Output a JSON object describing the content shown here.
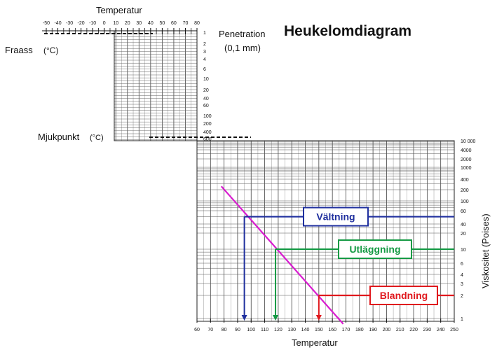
{
  "chart_data": {
    "type": "line",
    "title": "Heukelomdiagram",
    "top_panel": {
      "temperature_label": "Temperatur",
      "temperature_ticks": [
        "-50",
        "-40",
        "-30",
        "-20",
        "-10",
        "0",
        "10",
        "20",
        "30",
        "40",
        "50",
        "60",
        "70",
        "80"
      ],
      "left_label_fraass": "Fraass",
      "left_label_fraass_unit": "(°C)",
      "left_label_mjukpunkt": "Mjukpunkt",
      "left_label_mjukpunkt_unit": "(°C)",
      "penetration_label": "Penetration",
      "penetration_unit": "(0,1 mm)",
      "penetration_ticks": [
        "1",
        "2",
        "3",
        "4",
        "6",
        "10",
        "20",
        "40",
        "60",
        "100",
        "200",
        "400",
        "600"
      ]
    },
    "main_panel": {
      "xlabel": "Temperatur",
      "ylabel": "Viskositet (Poises)",
      "x_ticks": [
        "60",
        "70",
        "80",
        "90",
        "100",
        "110",
        "120",
        "130",
        "140",
        "150",
        "160",
        "170",
        "180",
        "190",
        "200",
        "210",
        "220",
        "230",
        "240",
        "250"
      ],
      "xlim": [
        60,
        250
      ],
      "y_ticks": [
        "1",
        "2",
        "3",
        "4",
        "6",
        "10",
        "20",
        "40",
        "60",
        "100",
        "200",
        "400",
        "1000",
        "2000",
        "4000",
        "10 000"
      ],
      "y_scale": "log",
      "grid": true
    },
    "series": [
      {
        "color": "#d81ccf",
        "x": [
          78,
          168
        ],
        "y": [
          250,
          0.85
        ]
      }
    ],
    "annotations": [
      {
        "label": "Vältning",
        "color": "#1f2f9e",
        "temp": 95,
        "viscosity": 50
      },
      {
        "label": "Utläggning",
        "color": "#159a44",
        "temp": 118,
        "viscosity": 10
      },
      {
        "label": "Blandning",
        "color": "#e0181d",
        "temp": 150,
        "viscosity": 2
      }
    ]
  }
}
